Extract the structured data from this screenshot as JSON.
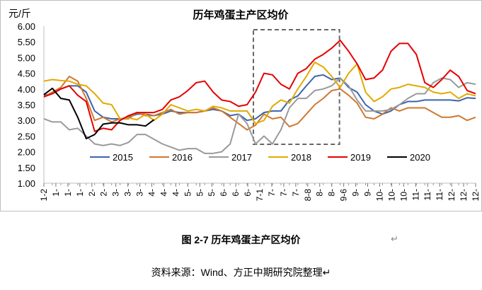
{
  "chart_data": {
    "type": "line",
    "title": "历年鸡蛋主产区均价",
    "ylabel": "元/斤",
    "xlabel": "",
    "ylim": [
      1.0,
      6.0
    ],
    "yticks": [
      "1.00",
      "1.50",
      "2.00",
      "2.50",
      "3.00",
      "3.50",
      "4.00",
      "4.50",
      "5.00",
      "5.50",
      "6.00"
    ],
    "xtick_labels": [
      "1-2",
      "1-",
      "1-",
      "1-",
      "2-",
      "2-",
      "3-",
      "3-",
      "3-",
      "4-",
      "4-",
      "4-",
      "5-",
      "5-",
      "5-",
      "6-",
      "6-",
      "6-",
      "7-1",
      "7-",
      "7-",
      "7-",
      "8-8",
      "8-",
      "8-",
      "9-6",
      "9-",
      "9-",
      "10-",
      "10-",
      "10-",
      "11-",
      "11-",
      "11-",
      "12-",
      "12-",
      "12-"
    ],
    "x_points": 52,
    "grid": false,
    "legend": "bottom-inside",
    "highlight_box_week_range": [
      25,
      35
    ],
    "series": [
      {
        "name": "2015",
        "color": "#3B64AD",
        "values": [
          3.8,
          3.85,
          4.0,
          4.1,
          4.1,
          3.9,
          3.3,
          3.1,
          3.05,
          3.05,
          3.1,
          3.2,
          3.2,
          3.15,
          3.2,
          3.3,
          3.25,
          3.25,
          3.25,
          3.3,
          3.35,
          3.3,
          3.15,
          3.2,
          3.0,
          3.05,
          3.25,
          3.3,
          3.3,
          3.65,
          3.78,
          4.1,
          4.4,
          4.45,
          4.3,
          4.35,
          4.05,
          3.9,
          3.5,
          3.3,
          3.2,
          3.3,
          3.5,
          3.6,
          3.6,
          3.65,
          3.65,
          3.65,
          3.65,
          3.62,
          3.72,
          3.7
        ]
      },
      {
        "name": "2016",
        "color": "#D0782F",
        "values": [
          3.75,
          3.9,
          4.05,
          4.4,
          4.25,
          3.7,
          3.0,
          3.1,
          2.95,
          3.05,
          3.05,
          3.25,
          3.15,
          3.15,
          3.25,
          3.35,
          3.2,
          3.25,
          3.25,
          3.3,
          3.4,
          3.3,
          3.1,
          2.9,
          2.7,
          2.85,
          3.2,
          3.05,
          3.1,
          2.8,
          2.9,
          3.2,
          3.5,
          3.7,
          3.95,
          4.0,
          3.8,
          3.55,
          3.1,
          3.05,
          3.2,
          3.4,
          3.3,
          3.4,
          3.4,
          3.4,
          3.25,
          3.1,
          3.1,
          3.15,
          3.0,
          3.1
        ]
      },
      {
        "name": "2017",
        "color": "#9A9A9A",
        "values": [
          3.05,
          2.95,
          2.95,
          2.7,
          2.75,
          2.5,
          2.25,
          2.2,
          2.25,
          2.2,
          2.3,
          2.55,
          2.55,
          2.4,
          2.25,
          2.15,
          2.05,
          2.1,
          2.1,
          1.95,
          1.95,
          2.0,
          2.25,
          3.2,
          2.9,
          2.25,
          2.5,
          2.25,
          2.7,
          3.4,
          3.7,
          3.7,
          3.95,
          4.0,
          4.1,
          4.35,
          4.1,
          3.65,
          3.3,
          3.3,
          3.3,
          3.35,
          3.5,
          3.7,
          3.85,
          3.85,
          4.2,
          4.35,
          4.3,
          4.05,
          4.2,
          4.15
        ]
      },
      {
        "name": "2018",
        "color": "#E2AA00",
        "values": [
          4.25,
          4.3,
          4.27,
          4.25,
          4.15,
          4.1,
          3.85,
          3.55,
          3.5,
          3.05,
          3.08,
          3.02,
          3.2,
          3.0,
          3.2,
          3.5,
          3.4,
          3.3,
          3.35,
          3.3,
          3.45,
          3.4,
          3.3,
          3.3,
          3.3,
          2.9,
          3.0,
          3.45,
          3.65,
          3.55,
          4.0,
          4.4,
          4.85,
          4.7,
          4.4,
          4.05,
          4.5,
          4.8,
          3.9,
          3.6,
          3.75,
          4.0,
          4.05,
          4.15,
          4.1,
          4.05,
          3.9,
          3.85,
          3.9,
          3.7,
          3.85,
          3.78
        ]
      },
      {
        "name": "2019",
        "color": "#E60000",
        "values": [
          3.75,
          3.85,
          4.0,
          4.1,
          3.8,
          3.6,
          2.65,
          2.75,
          2.7,
          3.0,
          3.15,
          3.25,
          3.25,
          3.25,
          3.35,
          3.65,
          3.75,
          3.95,
          4.2,
          4.25,
          3.9,
          3.65,
          3.6,
          3.45,
          3.5,
          3.9,
          4.5,
          4.45,
          4.15,
          4.0,
          4.5,
          4.65,
          4.95,
          5.1,
          5.3,
          5.55,
          5.2,
          4.8,
          4.3,
          4.35,
          4.6,
          5.2,
          5.45,
          5.45,
          5.1,
          4.2,
          4.05,
          4.3,
          4.6,
          4.4,
          3.95,
          3.85
        ]
      },
      {
        "name": "2020",
        "color": "#000000",
        "values": [
          3.82,
          4.02,
          3.7,
          3.65,
          3.1,
          2.42,
          2.55,
          2.88,
          2.92,
          2.92,
          2.86,
          2.86,
          2.82,
          3.02
        ]
      }
    ]
  },
  "caption": "图 2-7  历年鸡蛋主产区均价",
  "caption_mark": "↵",
  "source": "资料来源：Wind、方正中期研究院整理↵"
}
